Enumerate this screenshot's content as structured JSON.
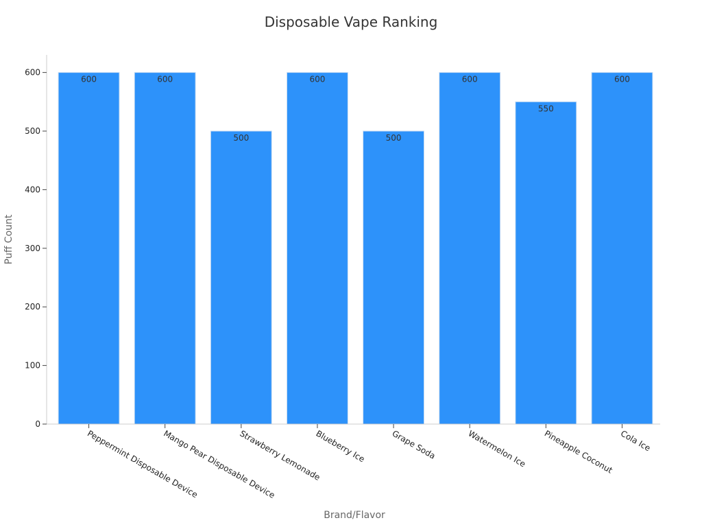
{
  "chart_data": {
    "type": "bar",
    "title": "Disposable Vape Ranking",
    "xlabel": "Brand/Flavor",
    "ylabel": "Puff Count",
    "categories": [
      "Peppermint Disposable Device",
      "Mango Pear Disposable Device",
      "Strawberry Lemonade",
      "Blueberry Ice",
      "Grape Soda",
      "Watermelon Ice",
      "Pineapple Coconut",
      "Cola Ice"
    ],
    "values": [
      600,
      600,
      500,
      600,
      500,
      600,
      550,
      600
    ],
    "data_labels": [
      "600",
      "600",
      "500",
      "600",
      "500",
      "600",
      "550",
      "600"
    ],
    "ylim": [
      0,
      630
    ],
    "yticks": [
      0,
      100,
      200,
      300,
      400,
      500,
      600
    ],
    "grid": false,
    "legend": "none",
    "colors": {
      "bar": "#2d92fa",
      "bar_edge": "#c9ddf2",
      "axis": "#cccccc"
    }
  }
}
